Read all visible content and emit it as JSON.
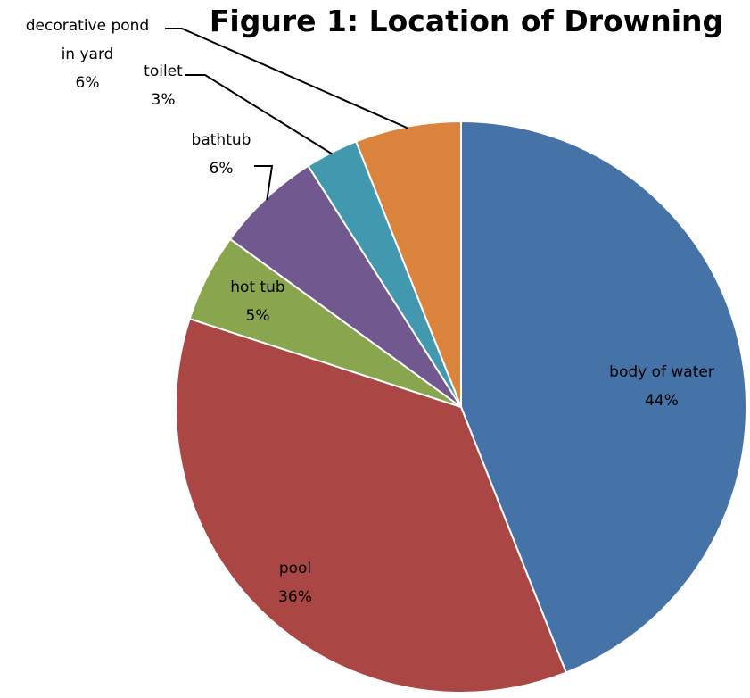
{
  "chart_data": {
    "type": "pie",
    "title": "Figure 1: Location of Drowning",
    "slices": [
      {
        "name": "body of water",
        "value": 44,
        "label": "44%",
        "color": "#4572a7"
      },
      {
        "name": "pool",
        "value": 36,
        "label": "36%",
        "color": "#aa4643"
      },
      {
        "name": "hot tub",
        "value": 5,
        "label": "5%",
        "color": "#89a54e"
      },
      {
        "name": "bathtub",
        "value": 6,
        "label": "6%",
        "color": "#71588f"
      },
      {
        "name": "toilet",
        "value": 3,
        "label": "3%",
        "color": "#4198af"
      },
      {
        "name": "decorative pond in yard",
        "value": 6,
        "label": "6%",
        "color": "#db843d"
      }
    ]
  }
}
